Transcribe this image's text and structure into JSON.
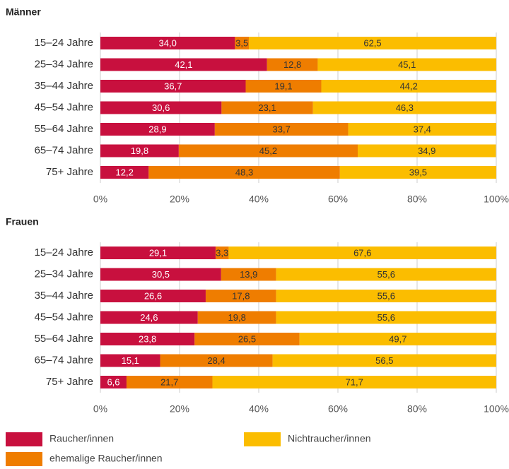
{
  "chart_data": [
    {
      "type": "stacked-bar-horizontal",
      "title": "Männer",
      "categories": [
        "15–24 Jahre",
        "25–34 Jahre",
        "35–44 Jahre",
        "45–54 Jahre",
        "55–64 Jahre",
        "65–74 Jahre",
        "75+ Jahre"
      ],
      "series": [
        {
          "name": "Raucher/innen",
          "color": "#c8103e",
          "values": [
            34.0,
            42.1,
            36.7,
            30.6,
            28.9,
            19.8,
            12.2
          ],
          "value_labels": [
            "34,0",
            "42,1",
            "36,7",
            "30,6",
            "28,9",
            "19,8",
            "12,2"
          ]
        },
        {
          "name": "ehemalige Raucher/innen",
          "color": "#ef7d00",
          "values": [
            3.5,
            12.8,
            19.1,
            23.1,
            33.7,
            45.2,
            48.3
          ],
          "value_labels": [
            "3,5",
            "12,8",
            "19,1",
            "23,1",
            "33,7",
            "45,2",
            "48,3"
          ]
        },
        {
          "name": "Nichtraucher/innen",
          "color": "#fbbd00",
          "values": [
            62.5,
            45.1,
            44.2,
            46.3,
            37.4,
            34.9,
            39.5
          ],
          "value_labels": [
            "62,5",
            "45,1",
            "44,2",
            "46,3",
            "37,4",
            "34,9",
            "39,5"
          ]
        }
      ],
      "xlim": [
        0,
        100
      ],
      "xticks": [
        {
          "value": 0,
          "label": "0%"
        },
        {
          "value": 20,
          "label": "20%"
        },
        {
          "value": 40,
          "label": "40%"
        },
        {
          "value": 60,
          "label": "60%"
        },
        {
          "value": 80,
          "label": "80%"
        },
        {
          "value": 100,
          "label": "100%"
        }
      ],
      "grid": true
    },
    {
      "type": "stacked-bar-horizontal",
      "title": "Frauen",
      "categories": [
        "15–24 Jahre",
        "25–34 Jahre",
        "35–44 Jahre",
        "45–54 Jahre",
        "55–64 Jahre",
        "65–74 Jahre",
        "75+ Jahre"
      ],
      "series": [
        {
          "name": "Raucher/innen",
          "color": "#c8103e",
          "values": [
            29.1,
            30.5,
            26.6,
            24.6,
            23.8,
            15.1,
            6.6
          ],
          "value_labels": [
            "29,1",
            "30,5",
            "26,6",
            "24,6",
            "23,8",
            "15,1",
            "6,6"
          ]
        },
        {
          "name": "ehemalige Raucher/innen",
          "color": "#ef7d00",
          "values": [
            3.3,
            13.9,
            17.8,
            19.8,
            26.5,
            28.4,
            21.7
          ],
          "value_labels": [
            "3,3",
            "13,9",
            "17,8",
            "19,8",
            "26,5",
            "28,4",
            "21,7"
          ]
        },
        {
          "name": "Nichtraucher/innen",
          "color": "#fbbd00",
          "values": [
            67.6,
            55.6,
            55.6,
            55.6,
            49.7,
            56.5,
            71.7
          ],
          "value_labels": [
            "67,6",
            "55,6",
            "55,6",
            "55,6",
            "49,7",
            "56,5",
            "71,7"
          ]
        }
      ],
      "xlim": [
        0,
        100
      ],
      "xticks": [
        {
          "value": 0,
          "label": "0%"
        },
        {
          "value": 20,
          "label": "20%"
        },
        {
          "value": 40,
          "label": "40%"
        },
        {
          "value": 60,
          "label": "60%"
        },
        {
          "value": 80,
          "label": "80%"
        },
        {
          "value": 100,
          "label": "100%"
        }
      ],
      "grid": true
    }
  ]
}
